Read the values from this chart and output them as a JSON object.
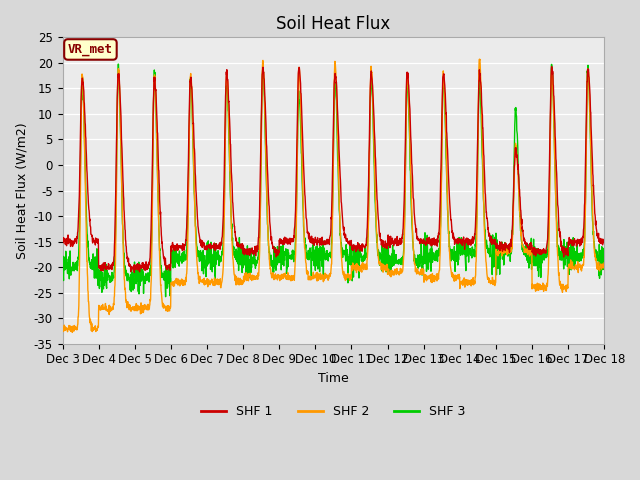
{
  "title": "Soil Heat Flux",
  "ylabel": "Soil Heat Flux (W/m2)",
  "xlabel": "Time",
  "ylim": [
    -35,
    25
  ],
  "yticks": [
    -35,
    -30,
    -25,
    -20,
    -15,
    -10,
    -5,
    0,
    5,
    10,
    15,
    20,
    25
  ],
  "xtick_labels": [
    "Dec 3",
    "Dec 4",
    "Dec 5",
    "Dec 6",
    "Dec 7",
    "Dec 8",
    "Dec 9",
    "Dec 10",
    "Dec 11",
    "Dec 12",
    "Dec 13",
    "Dec 14",
    "Dec 15",
    "Dec 16",
    "Dec 17",
    "Dec 18"
  ],
  "colors": {
    "SHF 1": "#cc0000",
    "SHF 2": "#ff9900",
    "SHF 3": "#00cc00"
  },
  "annotation_text": "VR_met",
  "annotation_color": "#880000",
  "annotation_bg": "#ffffcc",
  "fig_bg_color": "#d8d8d8",
  "plot_bg_color": "#ebebeb",
  "grid_color": "#ffffff",
  "line_width": 1.0,
  "title_fontsize": 12,
  "label_fontsize": 9,
  "tick_fontsize": 8.5
}
